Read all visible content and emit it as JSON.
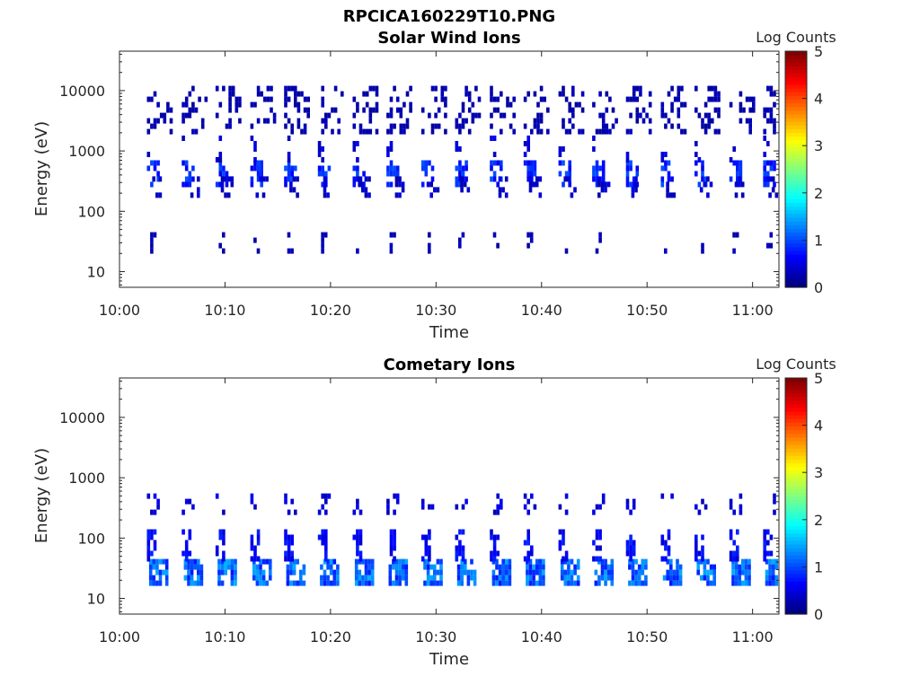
{
  "figure_title": "RPCICA160229T10.PNG",
  "colors": {
    "background": "#ffffff",
    "axis": "#262626",
    "colormap": "jet"
  },
  "chart_data": [
    {
      "type": "heatmap",
      "title": "Solar Wind Ions",
      "xlabel": "Time",
      "ylabel": "Energy (eV)",
      "x_ticks": [
        "10:00",
        "10:10",
        "10:20",
        "10:30",
        "10:40",
        "10:50",
        "11:00"
      ],
      "y_ticks": [
        "10",
        "100",
        "1000",
        "10000"
      ],
      "y_scale": "log",
      "ylim": [
        5.5,
        45000
      ],
      "xlim_minutes": [
        0,
        62.5
      ],
      "colorbar": {
        "label": "Log Counts",
        "ticks": [
          "0",
          "1",
          "2",
          "3",
          "4",
          "5"
        ],
        "range": [
          0,
          5
        ]
      },
      "sweep_starts_min": [
        2.6,
        5.9,
        9.1,
        12.4,
        15.6,
        18.8,
        22.1,
        25.3,
        28.6,
        31.8,
        35.1,
        38.3,
        41.6,
        44.8,
        48.0,
        51.3,
        54.5,
        57.8,
        61.0
      ],
      "clusters": [
        {
          "dt": [
            0.0,
            1.2
          ],
          "e": [
            250,
            700
          ],
          "level": 0.9
        },
        {
          "dt": [
            0.0,
            0.7
          ],
          "e": [
            700,
            1800
          ],
          "level": 0.5
        },
        {
          "dt": [
            0.5,
            1.6
          ],
          "e": [
            180,
            380
          ],
          "level": 0.4
        },
        {
          "dt": [
            0.3,
            1.0
          ],
          "e": [
            20,
            45
          ],
          "level": 0.3
        },
        {
          "dt": [
            0.0,
            2.6
          ],
          "e": [
            1800,
            12000
          ],
          "level": 0.25
        }
      ]
    },
    {
      "type": "heatmap",
      "title": "Cometary Ions",
      "xlabel": "Time",
      "ylabel": "Energy (eV)",
      "x_ticks": [
        "10:00",
        "10:10",
        "10:20",
        "10:30",
        "10:40",
        "10:50",
        "11:00"
      ],
      "y_ticks": [
        "10",
        "100",
        "1000",
        "10000"
      ],
      "y_scale": "log",
      "ylim": [
        5.5,
        45000
      ],
      "xlim_minutes": [
        0,
        62.5
      ],
      "colorbar": {
        "label": "Log Counts",
        "ticks": [
          "0",
          "1",
          "2",
          "3",
          "4",
          "5"
        ],
        "range": [
          0,
          5
        ]
      },
      "sweep_starts_min": [
        2.6,
        5.9,
        9.1,
        12.4,
        15.6,
        18.8,
        22.1,
        25.3,
        28.6,
        31.8,
        35.1,
        38.3,
        41.6,
        44.8,
        48.0,
        51.3,
        54.5,
        57.8,
        61.0
      ],
      "clusters": [
        {
          "dt": [
            0.2,
            2.0
          ],
          "e": [
            17,
            45
          ],
          "level": 1.3
        },
        {
          "dt": [
            0.0,
            1.0
          ],
          "e": [
            45,
            140
          ],
          "level": 0.7
        },
        {
          "dt": [
            0.0,
            1.2
          ],
          "e": [
            220,
            550
          ],
          "level": 0.5
        }
      ]
    }
  ]
}
